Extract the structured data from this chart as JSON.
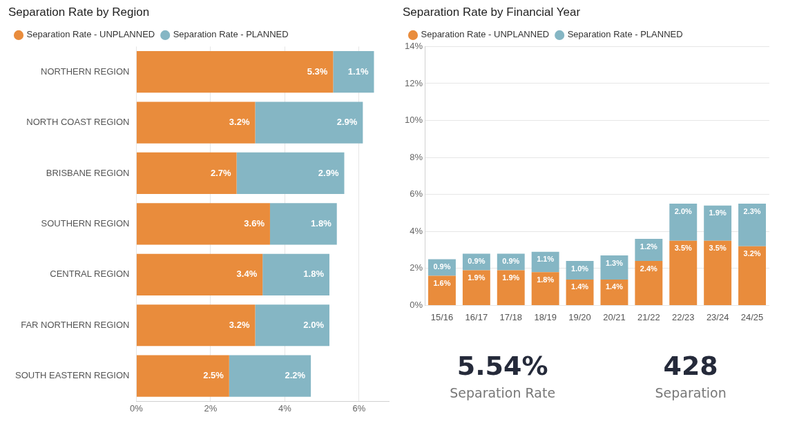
{
  "chart_data": [
    {
      "type": "bar",
      "title": "Separation Rate by Region",
      "orientation": "horizontal",
      "stacked": true,
      "legend": "top left",
      "grid": "x",
      "categories": [
        "NORTHERN REGION",
        "NORTH COAST REGION",
        "BRISBANE REGION",
        "SOUTHERN REGION",
        "CENTRAL REGION",
        "FAR NORTHERN REGION",
        "SOUTH EASTERN REGION"
      ],
      "xlim": [
        0,
        6.8
      ],
      "xticks": [
        {
          "value": 0,
          "label": "0%"
        },
        {
          "value": 2,
          "label": "2%"
        },
        {
          "value": 4,
          "label": "4%"
        },
        {
          "value": 6,
          "label": "6%"
        }
      ],
      "series": [
        {
          "name": "Separation Rate - UNPLANNED",
          "color": "#e98c3c",
          "values": [
            5.3,
            3.2,
            2.7,
            3.6,
            3.4,
            3.2,
            2.5
          ],
          "value_labels": [
            "5.3%",
            "3.2%",
            "2.7%",
            "3.6%",
            "3.4%",
            "3.2%",
            "2.5%"
          ]
        },
        {
          "name": "Separation Rate - PLANNED",
          "color": "#85b6c4",
          "values": [
            1.1,
            2.9,
            2.9,
            1.8,
            1.8,
            2.0,
            2.2
          ],
          "value_labels": [
            "1.1%",
            "2.9%",
            "2.9%",
            "1.8%",
            "1.8%",
            "2.0%",
            "2.2%"
          ]
        }
      ]
    },
    {
      "type": "bar",
      "title": "Separation Rate by Financial Year",
      "stacked": true,
      "legend": "top left",
      "grid": "y",
      "categories": [
        "15/16",
        "16/17",
        "17/18",
        "18/19",
        "19/20",
        "20/21",
        "21/22",
        "22/23",
        "23/24",
        "24/25"
      ],
      "ylim": [
        0,
        14
      ],
      "yticks": [
        {
          "value": 0,
          "label": "0%"
        },
        {
          "value": 2,
          "label": "2%"
        },
        {
          "value": 4,
          "label": "4%"
        },
        {
          "value": 6,
          "label": "6%"
        },
        {
          "value": 8,
          "label": "8%"
        },
        {
          "value": 10,
          "label": "10%"
        },
        {
          "value": 12,
          "label": "12%"
        },
        {
          "value": 14,
          "label": "14%"
        }
      ],
      "series": [
        {
          "name": "Separation Rate - UNPLANNED",
          "color": "#e98c3c",
          "values": [
            1.6,
            1.9,
            1.9,
            1.8,
            1.4,
            1.4,
            2.4,
            3.5,
            3.5,
            3.2
          ],
          "value_labels": [
            "1.6%",
            "1.9%",
            "1.9%",
            "1.8%",
            "1.4%",
            "1.4%",
            "2.4%",
            "3.5%",
            "3.5%",
            "3.2%"
          ]
        },
        {
          "name": "Separation Rate - PLANNED",
          "color": "#85b6c4",
          "values": [
            0.9,
            0.9,
            0.9,
            1.1,
            1.0,
            1.3,
            1.2,
            2.0,
            1.9,
            2.3
          ],
          "value_labels": [
            "0.9%",
            "0.9%",
            "0.9%",
            "1.1%",
            "1.0%",
            "1.3%",
            "1.2%",
            "2.0%",
            "1.9%",
            "2.3%"
          ]
        }
      ]
    },
    {
      "type": "other",
      "annotations": [
        "5.54%",
        "Separation Rate",
        "428",
        "Separation"
      ]
    }
  ]
}
